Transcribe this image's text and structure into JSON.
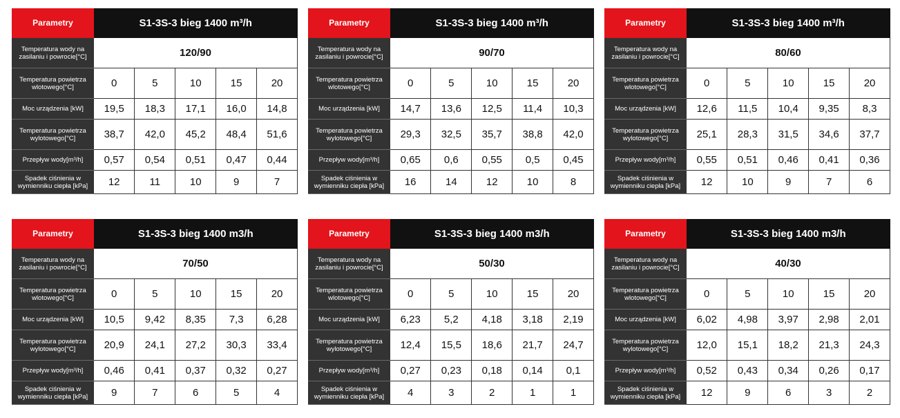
{
  "labels": {
    "param": "Parametry",
    "water_temp": "Temperatura wody na zasilaniu i powrocie[°C]",
    "air_in": "Temperatura powietrza wlotowego[°C]",
    "power": "Moc urządzenia [kW]",
    "air_out": "Temperatura powietrza wylotowego[°C]",
    "flow": "Przepływ wody[m³/h]",
    "drop": "Spadek ciśnienia w wymienniku ciepła [kPa]"
  },
  "tables": [
    {
      "title": "S1-3S-3 bieg 1400 m³/h",
      "water_temp": "120/90",
      "air_in": [
        "0",
        "5",
        "10",
        "15",
        "20"
      ],
      "power": [
        "19,5",
        "18,3",
        "17,1",
        "16,0",
        "14,8"
      ],
      "air_out": [
        "38,7",
        "42,0",
        "45,2",
        "48,4",
        "51,6"
      ],
      "flow": [
        "0,57",
        "0,54",
        "0,51",
        "0,47",
        "0,44"
      ],
      "drop": [
        "12",
        "11",
        "10",
        "9",
        "7"
      ]
    },
    {
      "title": "S1-3S-3 bieg 1400 m³/h",
      "water_temp": "90/70",
      "air_in": [
        "0",
        "5",
        "10",
        "15",
        "20"
      ],
      "power": [
        "14,7",
        "13,6",
        "12,5",
        "11,4",
        "10,3"
      ],
      "air_out": [
        "29,3",
        "32,5",
        "35,7",
        "38,8",
        "42,0"
      ],
      "flow": [
        "0,65",
        "0,6",
        "0,55",
        "0,5",
        "0,45"
      ],
      "drop": [
        "16",
        "14",
        "12",
        "10",
        "8"
      ]
    },
    {
      "title": "S1-3S-3 bieg 1400 m³/h",
      "water_temp": "80/60",
      "air_in": [
        "0",
        "5",
        "10",
        "15",
        "20"
      ],
      "power": [
        "12,6",
        "11,5",
        "10,4",
        "9,35",
        "8,3"
      ],
      "air_out": [
        "25,1",
        "28,3",
        "31,5",
        "34,6",
        "37,7"
      ],
      "flow": [
        "0,55",
        "0,51",
        "0,46",
        "0,41",
        "0,36"
      ],
      "drop": [
        "12",
        "10",
        "9",
        "7",
        "6"
      ]
    },
    {
      "title": "S1-3S-3 bieg 1400 m3/h",
      "water_temp": "70/50",
      "air_in": [
        "0",
        "5",
        "10",
        "15",
        "20"
      ],
      "power": [
        "10,5",
        "9,42",
        "8,35",
        "7,3",
        "6,28"
      ],
      "air_out": [
        "20,9",
        "24,1",
        "27,2",
        "30,3",
        "33,4"
      ],
      "flow": [
        "0,46",
        "0,41",
        "0,37",
        "0,32",
        "0,27"
      ],
      "drop": [
        "9",
        "7",
        "6",
        "5",
        "4"
      ]
    },
    {
      "title": "S1-3S-3 bieg 1400 m3/h",
      "water_temp": "50/30",
      "air_in": [
        "0",
        "5",
        "10",
        "15",
        "20"
      ],
      "power": [
        "6,23",
        "5,2",
        "4,18",
        "3,18",
        "2,19"
      ],
      "air_out": [
        "12,4",
        "15,5",
        "18,6",
        "21,7",
        "24,7"
      ],
      "flow": [
        "0,27",
        "0,23",
        "0,18",
        "0,14",
        "0,1"
      ],
      "drop": [
        "4",
        "3",
        "2",
        "1",
        "1"
      ]
    },
    {
      "title": "S1-3S-3 bieg 1400 m3/h",
      "water_temp": "40/30",
      "air_in": [
        "0",
        "5",
        "10",
        "15",
        "20"
      ],
      "power": [
        "6,02",
        "4,98",
        "3,97",
        "2,98",
        "2,01"
      ],
      "air_out": [
        "12,0",
        "15,1",
        "18,2",
        "21,3",
        "24,3"
      ],
      "flow": [
        "0,52",
        "0,43",
        "0,34",
        "0,26",
        "0,17"
      ],
      "drop": [
        "12",
        "9",
        "6",
        "3",
        "2"
      ]
    }
  ]
}
